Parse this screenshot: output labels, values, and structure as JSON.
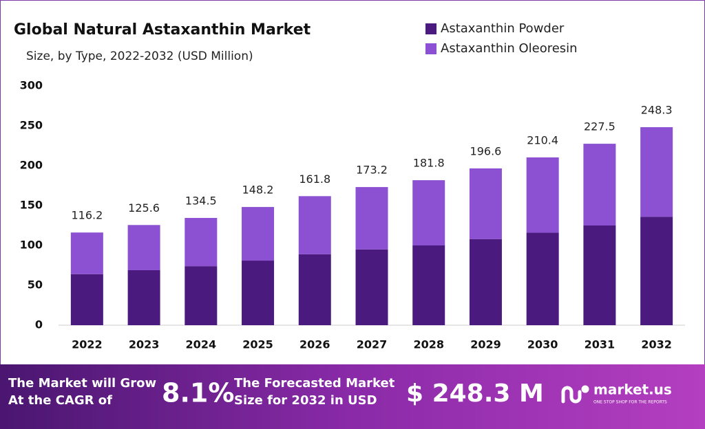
{
  "chart_data": {
    "type": "stacked_bar",
    "title": "Global Natural Astaxanthin Market",
    "subtitle": "Size, by Type, 2022-2032 (USD Million)",
    "categories": [
      "2022",
      "2023",
      "2024",
      "2025",
      "2026",
      "2027",
      "2028",
      "2029",
      "2030",
      "2031",
      "2032"
    ],
    "series": [
      {
        "name": "Astaxanthin Powder",
        "color": "#4b1a7e",
        "values": [
          64,
          69,
          74,
          81,
          89,
          95,
          100,
          108,
          116,
          125,
          136
        ]
      },
      {
        "name": "Astaxanthin Oleoresin",
        "color": "#8c50d2",
        "values": [
          52.2,
          56.6,
          60.5,
          67.2,
          72.8,
          78.2,
          81.8,
          88.6,
          94.4,
          102.5,
          112.3
        ]
      }
    ],
    "totals": [
      116.2,
      125.6,
      134.5,
      148.2,
      161.8,
      173.2,
      181.8,
      196.6,
      210.4,
      227.5,
      248.3
    ],
    "ylim": [
      0,
      300
    ],
    "yticks": [
      0,
      50,
      100,
      150,
      200,
      250,
      300
    ],
    "grid": false,
    "legend": "top-right"
  },
  "footer": {
    "cagr_text": [
      "The Market will Grow",
      "At the CAGR of"
    ],
    "cagr_value": "8.1%",
    "forecast_text": [
      "The Forecasted Market",
      "Size for 2032 in USD"
    ],
    "forecast_value": "$ 248.3 M",
    "brand": "market.us",
    "tagline": "ONE STOP SHOP FOR THE REPORTS"
  }
}
